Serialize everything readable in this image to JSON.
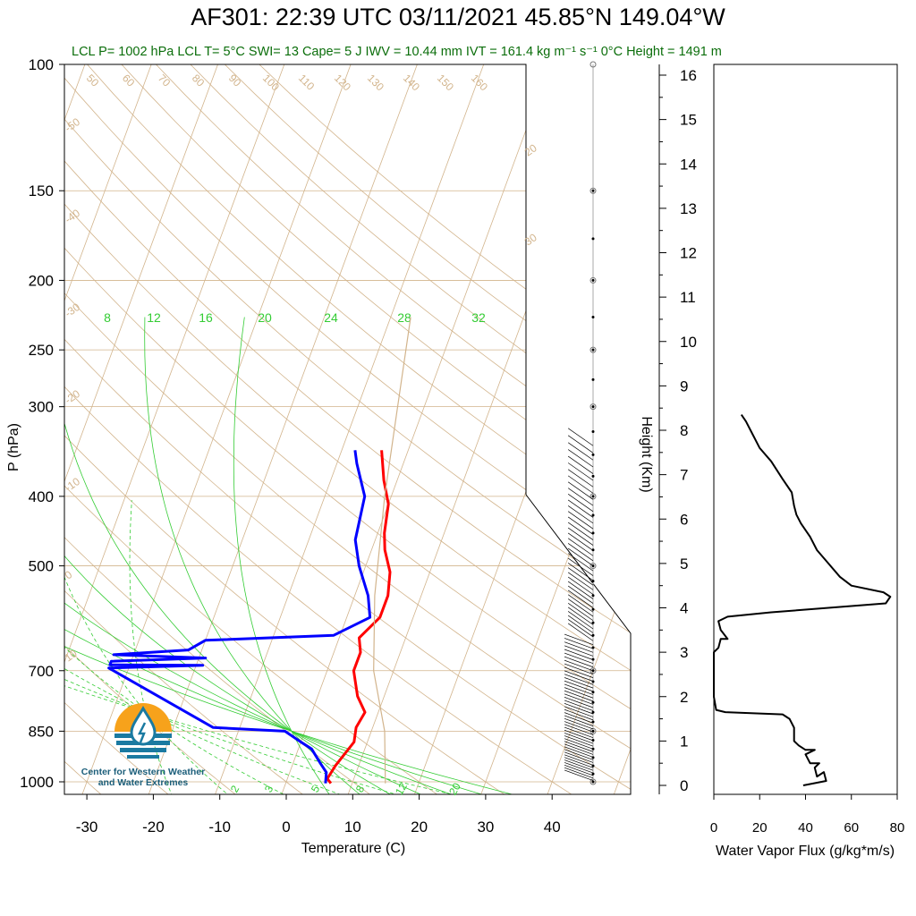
{
  "header": {
    "title": "AF301: 22:39 UTC 03/11/2021  45.85°N 149.04°W",
    "subtitle": "LCL P= 1002 hPa  LCL T= 5°C  SWI= 13  Cape= 5 J  IWV = 10.44 mm  IVT = 161.4 kg m⁻¹ s⁻¹  0°C Height = 1491 m"
  },
  "logo": {
    "line1": "Center for Western Weather",
    "line2": "and Water Extremes"
  },
  "colors": {
    "temperature": "#ff0000",
    "dewpoint": "#0000ff",
    "isotherm": "#d2b48c",
    "mixing_ratio": "#33cc33",
    "flux": "#000000",
    "subtitle": "#0b6e0b"
  },
  "chart_data": [
    {
      "type": "line",
      "subtype": "skew-t",
      "xlabel": "Temperature (C)",
      "ylabel": "P (hPa)",
      "xlim": [
        -34,
        52
      ],
      "ylim": [
        1050,
        100
      ],
      "y_scale": "log",
      "x_ticks": [
        -30,
        -20,
        -10,
        0,
        10,
        20,
        30,
        40
      ],
      "y_ticks": [
        100,
        150,
        200,
        250,
        300,
        400,
        500,
        700,
        850,
        1000
      ],
      "isotherm_labels": [
        -50,
        -40,
        -30,
        -20,
        -10,
        0,
        10,
        20,
        30
      ],
      "dry_adiabat_labels": [
        50,
        60,
        70,
        80,
        90,
        100,
        110,
        120,
        130,
        140,
        150,
        160
      ],
      "mixing_ratio_labels": [
        8,
        12,
        16,
        20,
        24,
        28,
        32
      ],
      "moist_labels": [
        2,
        3,
        5,
        8,
        12,
        20
      ],
      "series": [
        {
          "key": "temperature",
          "points": [
            [
              -4,
              345
            ],
            [
              -2,
              380
            ],
            [
              0,
              410
            ],
            [
              1,
              450
            ],
            [
              2,
              475
            ],
            [
              4,
              510
            ],
            [
              5,
              550
            ],
            [
              5,
              590
            ],
            [
              3,
              630
            ],
            [
              4,
              660
            ],
            [
              4,
              700
            ],
            [
              6,
              760
            ],
            [
              8,
              800
            ],
            [
              7.5,
              840
            ],
            [
              8,
              880
            ],
            [
              6.5,
              950
            ],
            [
              6,
              990
            ],
            [
              6.8,
              1005
            ]
          ]
        },
        {
          "key": "dewpoint",
          "points": [
            [
              -8,
              345
            ],
            [
              -7,
              360
            ],
            [
              -4,
              400
            ],
            [
              -3,
              460
            ],
            [
              -1,
              500
            ],
            [
              2,
              550
            ],
            [
              3.5,
              590
            ],
            [
              -1,
              625
            ],
            [
              -20,
              635
            ],
            [
              -22,
              655
            ],
            [
              -33,
              665
            ],
            [
              -19,
              672
            ],
            [
              -33,
              679
            ],
            [
              -33,
              687
            ],
            [
              -19,
              688
            ],
            [
              -33,
              694
            ],
            [
              -14,
              840
            ],
            [
              -3,
              850
            ],
            [
              0,
              880
            ],
            [
              2,
              900
            ],
            [
              4,
              940
            ],
            [
              5.5,
              970
            ],
            [
              6,
              1005
            ]
          ]
        },
        {
          "key": "parcel",
          "points": [
            [
              -7,
              225
            ],
            [
              -4,
              300
            ],
            [
              -1,
              400
            ],
            [
              3,
              550
            ],
            [
              7,
              700
            ],
            [
              12,
              850
            ],
            [
              15,
              1005
            ]
          ]
        }
      ]
    },
    {
      "type": "line",
      "ylabel": "Height (Km)",
      "xlabel": "Water Vapor Flux (g/kg*m/s)",
      "xlim": [
        0,
        80
      ],
      "ylim": [
        -0.3,
        16.5
      ],
      "x_ticks": [
        0,
        20,
        40,
        60,
        80
      ],
      "y_ticks": [
        0,
        1,
        2,
        3,
        4,
        5,
        6,
        7,
        8,
        9,
        10,
        11,
        12,
        13,
        14,
        15,
        16
      ],
      "series": [
        {
          "key": "flux",
          "points": [
            [
              39,
              0.0
            ],
            [
              49,
              0.1
            ],
            [
              48,
              0.3
            ],
            [
              45,
              0.2
            ],
            [
              44,
              0.4
            ],
            [
              46,
              0.5
            ],
            [
              42,
              0.5
            ],
            [
              40,
              0.7
            ],
            [
              44,
              0.8
            ],
            [
              40,
              0.8
            ],
            [
              37,
              0.9
            ],
            [
              35,
              1.0
            ],
            [
              35,
              1.3
            ],
            [
              33,
              1.5
            ],
            [
              30,
              1.6
            ],
            [
              5,
              1.65
            ],
            [
              1,
              1.7
            ],
            [
              0,
              2.0
            ],
            [
              0,
              3.0
            ],
            [
              2,
              3.1
            ],
            [
              3,
              3.3
            ],
            [
              6,
              3.3
            ],
            [
              3,
              3.5
            ],
            [
              2,
              3.7
            ],
            [
              6,
              3.8
            ],
            [
              25,
              3.9
            ],
            [
              50,
              4.0
            ],
            [
              75,
              4.1
            ],
            [
              77,
              4.25
            ],
            [
              74,
              4.35
            ],
            [
              60,
              4.5
            ],
            [
              55,
              4.7
            ],
            [
              50,
              5.0
            ],
            [
              45,
              5.3
            ],
            [
              42,
              5.6
            ],
            [
              38,
              5.9
            ],
            [
              36,
              6.1
            ],
            [
              35,
              6.3
            ],
            [
              34,
              6.6
            ],
            [
              30,
              6.9
            ],
            [
              25,
              7.3
            ],
            [
              20,
              7.6
            ],
            [
              17,
              7.9
            ],
            [
              14,
              8.2
            ],
            [
              12,
              8.35
            ]
          ]
        }
      ]
    }
  ]
}
